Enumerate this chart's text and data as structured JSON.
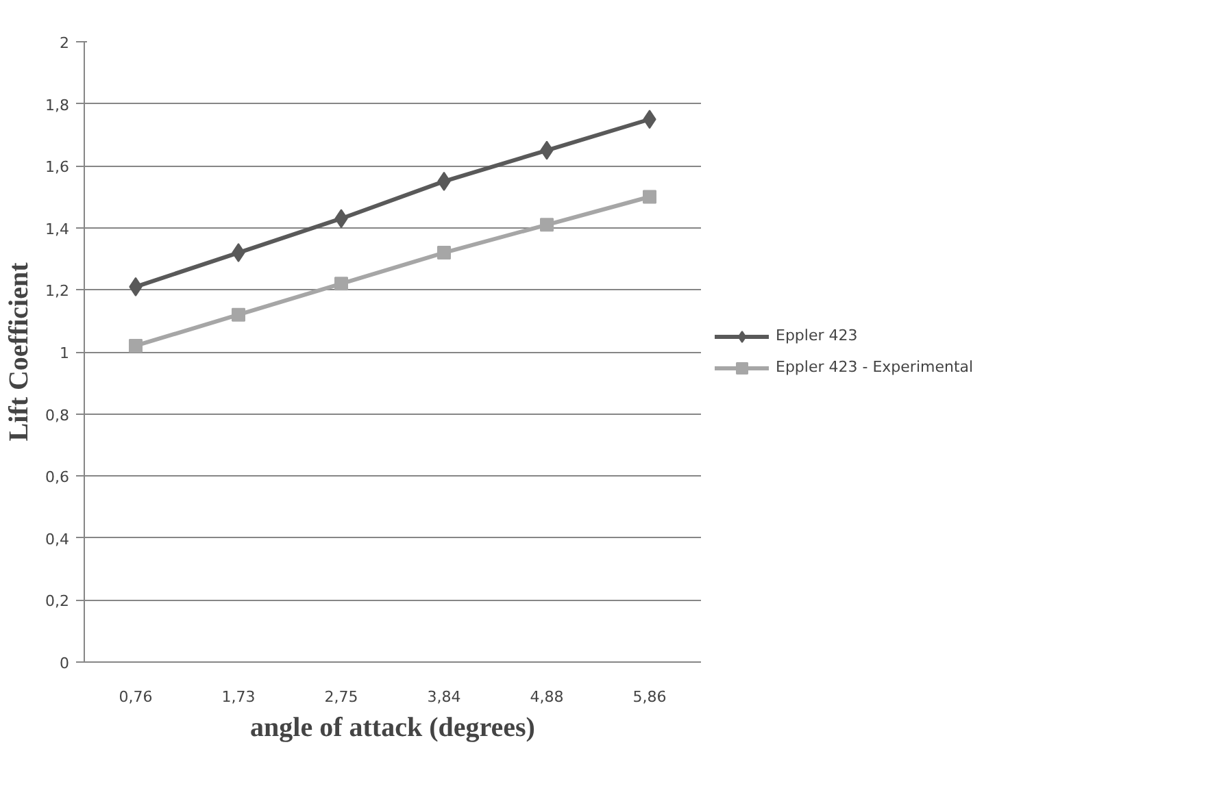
{
  "chart_data": {
    "type": "line",
    "xlabel": "angle of attack (degrees)",
    "ylabel": "Lift Coefficient",
    "categories": [
      "0,76",
      "1,73",
      "2,75",
      "3,84",
      "4,88",
      "5,86"
    ],
    "ylim": [
      0,
      2
    ],
    "yticks": [
      {
        "value": 0,
        "label": "0"
      },
      {
        "value": 0.2,
        "label": "0,2"
      },
      {
        "value": 0.4,
        "label": "0,4"
      },
      {
        "value": 0.6,
        "label": "0,6"
      },
      {
        "value": 0.8,
        "label": "0,8"
      },
      {
        "value": 1,
        "label": "1"
      },
      {
        "value": 1.2,
        "label": "1,2"
      },
      {
        "value": 1.4,
        "label": "1,4"
      },
      {
        "value": 1.6,
        "label": "1,6"
      },
      {
        "value": 1.8,
        "label": "1,8"
      },
      {
        "value": 2,
        "label": "2"
      }
    ],
    "grid": "y",
    "legend": "right",
    "line_style": "solid",
    "series": [
      {
        "name": "Eppler 423",
        "color": "#595959",
        "marker": "diamond",
        "values": [
          1.21,
          1.32,
          1.43,
          1.55,
          1.65,
          1.75
        ]
      },
      {
        "name": "Eppler 423 - Experimental",
        "color": "#a6a6a6",
        "marker": "square",
        "values": [
          1.02,
          1.12,
          1.22,
          1.32,
          1.41,
          1.5
        ]
      }
    ]
  }
}
